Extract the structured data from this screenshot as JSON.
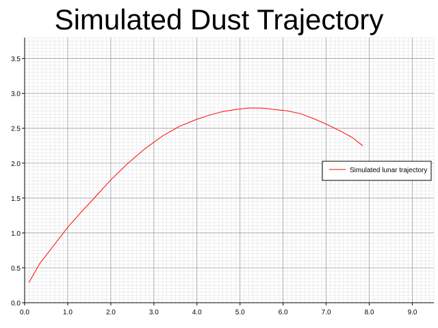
{
  "chart_data": {
    "type": "line",
    "title": "Simulated Dust Trajectory",
    "xlabel": "",
    "ylabel": "",
    "xlim": [
      0.0,
      9.5
    ],
    "ylim": [
      0.0,
      3.8
    ],
    "x_ticks": [
      "0.0",
      "1.0",
      "2.0",
      "3.0",
      "4.0",
      "5.0",
      "6.0",
      "7.0",
      "8.0",
      "9.0"
    ],
    "y_ticks": [
      "0.0",
      "0.5",
      "1.0",
      "1.5",
      "2.0",
      "2.5",
      "3.0",
      "3.5"
    ],
    "grid": true,
    "legend_position": "right",
    "series": [
      {
        "name": "Simulated lunar trajectory",
        "color": "#ff0000",
        "x": [
          0.1,
          0.35,
          0.7,
          1.0,
          1.3,
          1.6,
          2.0,
          2.4,
          2.8,
          3.2,
          3.6,
          4.0,
          4.3,
          4.6,
          4.9,
          5.2,
          5.5,
          5.8,
          6.1,
          6.4,
          6.7,
          7.0,
          7.3,
          7.6,
          7.85
        ],
        "y": [
          0.29,
          0.56,
          0.84,
          1.08,
          1.29,
          1.49,
          1.76,
          2.0,
          2.21,
          2.39,
          2.53,
          2.63,
          2.69,
          2.74,
          2.77,
          2.79,
          2.79,
          2.77,
          2.75,
          2.71,
          2.64,
          2.56,
          2.47,
          2.37,
          2.25
        ]
      }
    ]
  }
}
